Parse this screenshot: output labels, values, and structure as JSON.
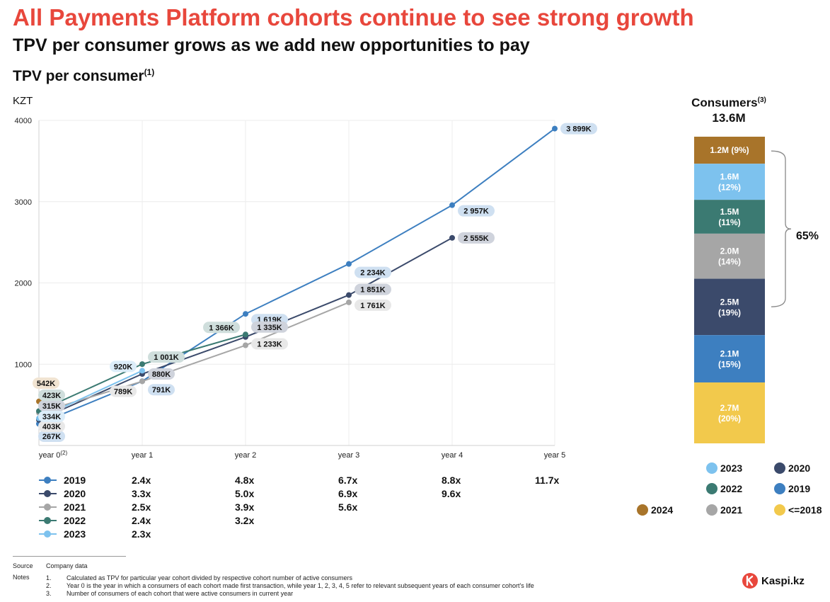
{
  "header": {
    "title": "All Payments Platform cohorts continue to see strong growth",
    "subtitle": "TPV per consumer grows as we add new opportunities to pay",
    "chart_heading": "TPV per consumer",
    "chart_heading_sup": "(1)"
  },
  "chart_data": {
    "type": "line",
    "ylabel": "KZT",
    "ylim": [
      0,
      4000
    ],
    "yticks": [
      "4000",
      "3000",
      "2000",
      "1000"
    ],
    "categories": [
      "year 0",
      "year 1",
      "year 2",
      "year 3",
      "year 4",
      "year 5"
    ],
    "category_sup": [
      "(2)",
      "",
      "",
      "",
      "",
      ""
    ],
    "grid": true,
    "series": [
      {
        "name": "2019",
        "color": "#3d7fc0",
        "values": [
          267,
          791,
          1619,
          2234,
          2957,
          3899
        ],
        "labels": [
          "267K",
          "791K",
          "1 619K",
          "2 234K",
          "2 957K",
          "3 899K"
        ],
        "label_bg": "#cfe0f1"
      },
      {
        "name": "2020",
        "color": "#3b4a6b",
        "values": [
          315,
          880,
          1335,
          1851,
          2555,
          null
        ],
        "labels": [
          "315K",
          "880K",
          "1 335K",
          "1 851K",
          "2 555K",
          ""
        ],
        "label_bg": "#cfd3dc"
      },
      {
        "name": "2021",
        "color": "#a6a6a6",
        "values": [
          403,
          789,
          1233,
          1761,
          null,
          null
        ],
        "labels": [
          "403K",
          "789K",
          "1 233K",
          "1 761K",
          "",
          ""
        ],
        "label_bg": "#e8e8e8"
      },
      {
        "name": "2022",
        "color": "#3b7a72",
        "values": [
          423,
          1001,
          1366,
          null,
          null,
          null
        ],
        "labels": [
          "423K",
          "1 001K",
          "1 366K",
          "",
          "",
          ""
        ],
        "label_bg": "#cfdedc"
      },
      {
        "name": "2023",
        "color": "#7dc2ee",
        "values": [
          334,
          920,
          null,
          null,
          null,
          null
        ],
        "labels": [
          "334K",
          "920K",
          "",
          "",
          "",
          ""
        ],
        "label_bg": "#dcedf9"
      },
      {
        "name": "2024",
        "color": "#a8742a",
        "values": [
          542,
          null,
          null,
          null,
          null,
          null
        ],
        "labels": [
          "542K",
          "",
          "",
          "",
          "",
          ""
        ],
        "label_bg": "#f1e4d2"
      }
    ],
    "multiples": [
      {
        "name": "2019",
        "values": [
          "2.4x",
          "4.8x",
          "6.7x",
          "8.8x",
          "11.7x"
        ]
      },
      {
        "name": "2020",
        "values": [
          "3.3x",
          "5.0x",
          "6.9x",
          "9.6x"
        ]
      },
      {
        "name": "2021",
        "values": [
          "2.5x",
          "3.9x",
          "5.6x"
        ]
      },
      {
        "name": "2022",
        "values": [
          "2.4x",
          "3.2x"
        ]
      },
      {
        "name": "2023",
        "values": [
          "2.3x"
        ]
      }
    ]
  },
  "consumers": {
    "heading": "Consumers",
    "heading_sup": "(3)",
    "total": "13.6M",
    "bracket_label": "65%",
    "segments": [
      {
        "cohort": "2024",
        "line1": "1.2M (9%)",
        "line2": "",
        "value_m": 1.2,
        "color": "#a8742a"
      },
      {
        "cohort": "2023",
        "line1": "1.6M",
        "line2": "(12%)",
        "value_m": 1.6,
        "color": "#7dc2ee"
      },
      {
        "cohort": "2022",
        "line1": "1.5M",
        "line2": "(11%)",
        "value_m": 1.5,
        "color": "#3b7a72"
      },
      {
        "cohort": "2021",
        "line1": "2.0M",
        "line2": "(14%)",
        "value_m": 2.0,
        "color": "#a6a6a6"
      },
      {
        "cohort": "2020",
        "line1": "2.5M",
        "line2": "(19%)",
        "value_m": 2.5,
        "color": "#3b4a6b"
      },
      {
        "cohort": "2019",
        "line1": "2.1M",
        "line2": "(15%)",
        "value_m": 2.1,
        "color": "#3d7fc0"
      },
      {
        "cohort": "<=2018",
        "line1": "2.7M",
        "line2": "(20%)",
        "value_m": 2.7,
        "color": "#f2c94c"
      }
    ],
    "legend": [
      {
        "label": "2023",
        "color": "#7dc2ee"
      },
      {
        "label": "2020",
        "color": "#3b4a6b"
      },
      {
        "label": "2022",
        "color": "#3b7a72"
      },
      {
        "label": "2019",
        "color": "#3d7fc0"
      },
      {
        "label": "2024",
        "color": "#a8742a"
      },
      {
        "label": "2021",
        "color": "#a6a6a6"
      },
      {
        "label": "<=2018",
        "color": "#f2c94c"
      }
    ]
  },
  "footer": {
    "source_label": "Source",
    "source_text": "Company data",
    "notes_label": "Notes",
    "notes": [
      {
        "num": "1.",
        "text": "Calculated as TPV for particular year cohort divided by respective cohort number of active consumers"
      },
      {
        "num": "2.",
        "text": "Year 0 is the year in which a consumers of each cohort made first transaction, while year 1, 2, 3, 4, 5 refer to relevant subsequent years of each consumer cohort's life"
      },
      {
        "num": "3.",
        "text": "Number of consumers of each cohort that were active consumers in current year"
      }
    ],
    "logo_text": "Kaspi.kz",
    "logo_color": "#e8473c"
  }
}
